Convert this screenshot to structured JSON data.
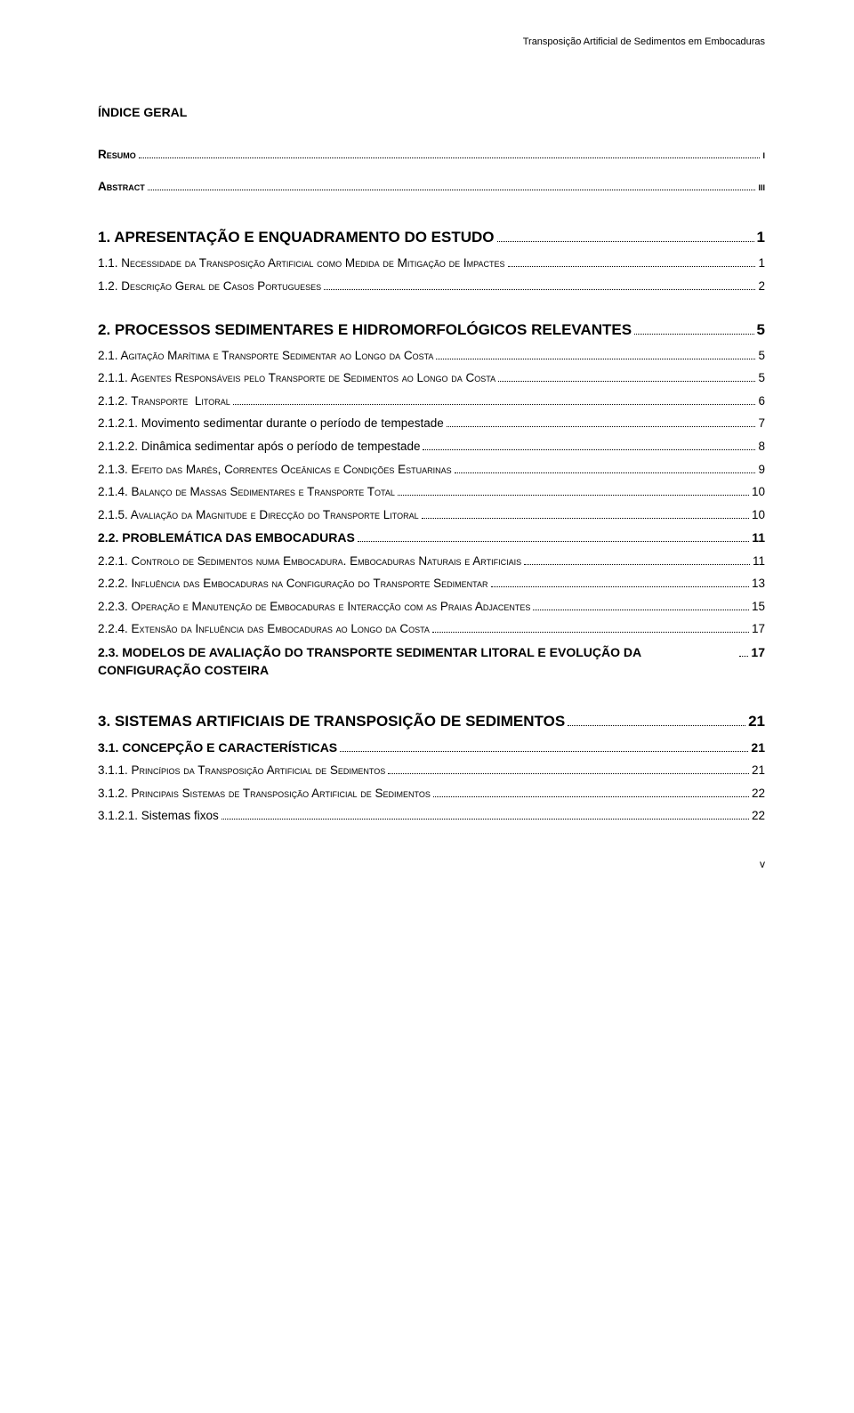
{
  "header": "Transposição Artificial de Sedimentos em Embocaduras",
  "index_title": "ÍNDICE GERAL",
  "page_number": "v",
  "entries": [
    {
      "cls": "front-line",
      "label": "Resumo",
      "page": "i",
      "gap_after": "sm"
    },
    {
      "cls": "front-line",
      "label": "Abstract",
      "page": "iii",
      "gap_after": "lg"
    },
    {
      "cls": "chapter-line",
      "label": "1. APRESENTAÇÃO E ENQUADRAMENTO DO ESTUDO",
      "page": "1",
      "gap_after": ""
    },
    {
      "cls": "h3-line",
      "label": "1.1. Necessidade da Transposição Artificial como Medida de Mitigação de Impactes",
      "page": "1",
      "gap_after": ""
    },
    {
      "cls": "h3-line",
      "label": "1.2. Descrição Geral de Casos Portugueses",
      "page": "2",
      "gap_after": "md"
    },
    {
      "cls": "chapter-line",
      "label": "2. PROCESSOS SEDIMENTARES E HIDROMORFOLÓGICOS RELEVANTES",
      "page": "5",
      "gap_after": ""
    },
    {
      "cls": "h3-line",
      "label": "2.1. Agitação Marítima e Transporte Sedimentar ao Longo da Costa",
      "page": "5",
      "gap_after": ""
    },
    {
      "cls": "h3-line",
      "label": "2.1.1. Agentes Responsáveis pelo Transporte de Sedimentos ao Longo da Costa",
      "page": "5",
      "gap_after": ""
    },
    {
      "cls": "h3-line",
      "label": "2.1.2. Transporte  Litoral",
      "page": "6",
      "gap_after": ""
    },
    {
      "cls": "plain-line",
      "label": "2.1.2.1. Movimento sedimentar durante o período de tempestade",
      "page": "7",
      "gap_after": ""
    },
    {
      "cls": "plain-line",
      "label": "2.1.2.2. Dinâmica sedimentar após o período de tempestade",
      "page": "8",
      "gap_after": ""
    },
    {
      "cls": "h3-line",
      "label": "2.1.3. Efeito das Marés, Correntes Oceânicas e Condições Estuarinas",
      "page": "9",
      "gap_after": ""
    },
    {
      "cls": "h3-line",
      "label": "2.1.4. Balanço de Massas Sedimentares e Transporte Total",
      "page": "10",
      "gap_after": ""
    },
    {
      "cls": "h3-line",
      "label": "2.1.5. Avaliação da Magnitude e Direcção do Transporte Litoral",
      "page": "10",
      "gap_after": ""
    },
    {
      "cls": "h2-line",
      "label": "2.2. PROBLEMÁTICA DAS EMBOCADURAS",
      "page": "11",
      "gap_after": ""
    },
    {
      "cls": "h3-line",
      "label": "2.2.1. Controlo de Sedimentos numa Embocadura. Embocaduras Naturais e Artificiais",
      "page": "11",
      "gap_after": ""
    },
    {
      "cls": "h3-line",
      "label": "2.2.2. Influência das Embocaduras na Configuração do Transporte Sedimentar",
      "page": "13",
      "gap_after": ""
    },
    {
      "cls": "h3-line",
      "label": "2.2.3. Operação e Manutenção de Embocaduras e Interacção com as Praias Adjacentes",
      "page": "15",
      "gap_after": ""
    },
    {
      "cls": "h3-line",
      "label": "2.2.4. Extensão da Influência das Embocaduras ao Longo da Costa",
      "page": "17",
      "gap_after": ""
    },
    {
      "cls": "h2-line",
      "label": "2.3. MODELOS DE AVALIAÇÃO DO TRANSPORTE SEDIMENTAR LITORAL E EVOLUÇÃO DA CONFIGURAÇÃO COSTEIRA",
      "page": "17",
      "gap_after": "lg"
    },
    {
      "cls": "chapter-line",
      "label": "3. SISTEMAS ARTIFICIAIS DE TRANSPOSIÇÃO DE SEDIMENTOS",
      "page": "21",
      "gap_after": ""
    },
    {
      "cls": "h2-line",
      "label": "3.1. CONCEPÇÃO E CARACTERÍSTICAS",
      "page": "21",
      "gap_after": ""
    },
    {
      "cls": "h3-line",
      "label": "3.1.1. Princípios da Transposição Artificial de Sedimentos",
      "page": "21",
      "gap_after": ""
    },
    {
      "cls": "h3-line",
      "label": "3.1.2. Principais Sistemas de Transposição Artificial de Sedimentos",
      "page": "22",
      "gap_after": ""
    },
    {
      "cls": "plain-line",
      "label": "3.1.2.1. Sistemas fixos",
      "page": "22",
      "gap_after": ""
    }
  ]
}
